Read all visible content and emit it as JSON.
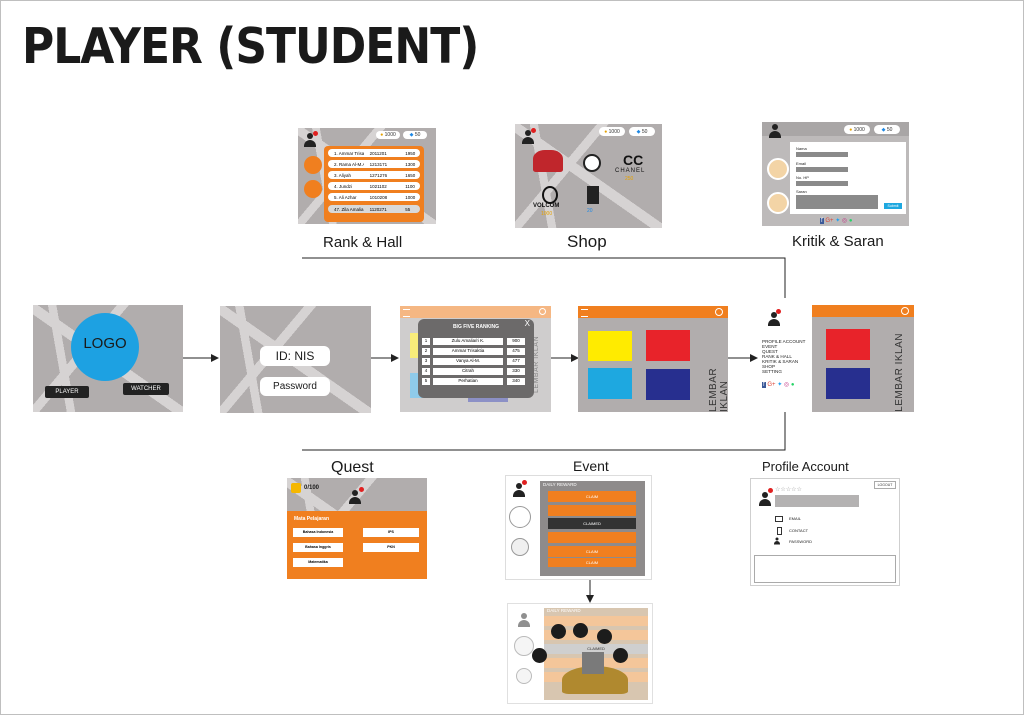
{
  "title": "PLAYER (STUDENT)",
  "labels": {
    "rank": "Rank & Hall",
    "shop": "Shop",
    "kritik": "Kritik & Saran",
    "quest": "Quest",
    "event": "Event",
    "profile": "Profile Account"
  },
  "login": {
    "logo": "LOGO",
    "player": "PLAYER",
    "watcher": "WATCHER",
    "id_field": "ID: NIS",
    "password_field": "Password"
  },
  "ads": {
    "lembar_iklan": "LEMBAR IKLAN",
    "faded": "LEMBAR IKLAN"
  },
  "currency": {
    "coins": "1000",
    "gems": "50",
    "coins_shop": "1000",
    "gems_shop": "50"
  },
  "rank_list": [
    {
      "name": "1. Ammar Trisaktia",
      "id": "2011201",
      "score": "1950"
    },
    {
      "name": "2. Rama Al-M.Ayi",
      "id": "1213171",
      "score": "1300"
    },
    {
      "name": "3. Aliyah",
      "id": "1271276",
      "score": "1650"
    },
    {
      "name": "4. Jundzi",
      "id": "1021102",
      "score": "1100"
    },
    {
      "name": "5. Ali Azhar",
      "id": "1010208",
      "score": "1000"
    },
    {
      "name": "47. Zila Amalia",
      "id": "1120271",
      "score": "55"
    }
  ],
  "shop": {
    "brands": [
      "VOLCOM",
      "CHANEL"
    ],
    "prices": [
      "1000",
      "250",
      "20",
      "10",
      "20"
    ]
  },
  "big_rank": {
    "title": "BIG FIVE RANKING",
    "close": "X",
    "rows": [
      {
        "no": "1",
        "name": "Zulu Amalia/ri K.",
        "score": "900"
      },
      {
        "no": "2",
        "name": "Ammar Trisaktia",
        "score": "475"
      },
      {
        "no": "3",
        "name": "Vanya Al-M.",
        "score": "477"
      },
      {
        "no": "4",
        "name": "Citrah",
        "score": "330"
      },
      {
        "no": "5",
        "name": "Perhatian",
        "score": "340"
      }
    ]
  },
  "side_menu": [
    "PROFILE ACCOUNT",
    "EVENT",
    "QUEST",
    "RANK & HALL",
    "KRITIK & SARAN",
    "SHOP",
    "SETTING"
  ],
  "kritik_form": {
    "fields": [
      "Nama",
      "Email",
      "No. HP",
      "Saran"
    ],
    "submit": "Submit"
  },
  "quest": {
    "score": "0/100",
    "heading": "Mata Pelajaran",
    "subjects": [
      "Bahasa Indonesia",
      "IPS",
      "Bahasa Inggris",
      "PKN",
      "Matematika"
    ]
  },
  "event": {
    "heading": "DAILY REWARD",
    "items": [
      "CLAIM",
      "CLAIMED",
      "CLAIMED",
      "CLAIM",
      "CLAIM"
    ]
  },
  "reward": {
    "heading": "DAILY REWARD",
    "item": "CLAIMED"
  },
  "profile": {
    "logout": "LOGOUT",
    "email": "EMAIL",
    "contact": "CONTACT",
    "password": "PASSWORD"
  },
  "colors": {
    "orange": "#f07f1f",
    "yellow": "#ffeb00",
    "red": "#e8232a",
    "cyan": "#1ea8e0",
    "navy": "#272f8f",
    "map_gray": "#b1adad",
    "logo_blue": "#1da1e2"
  }
}
